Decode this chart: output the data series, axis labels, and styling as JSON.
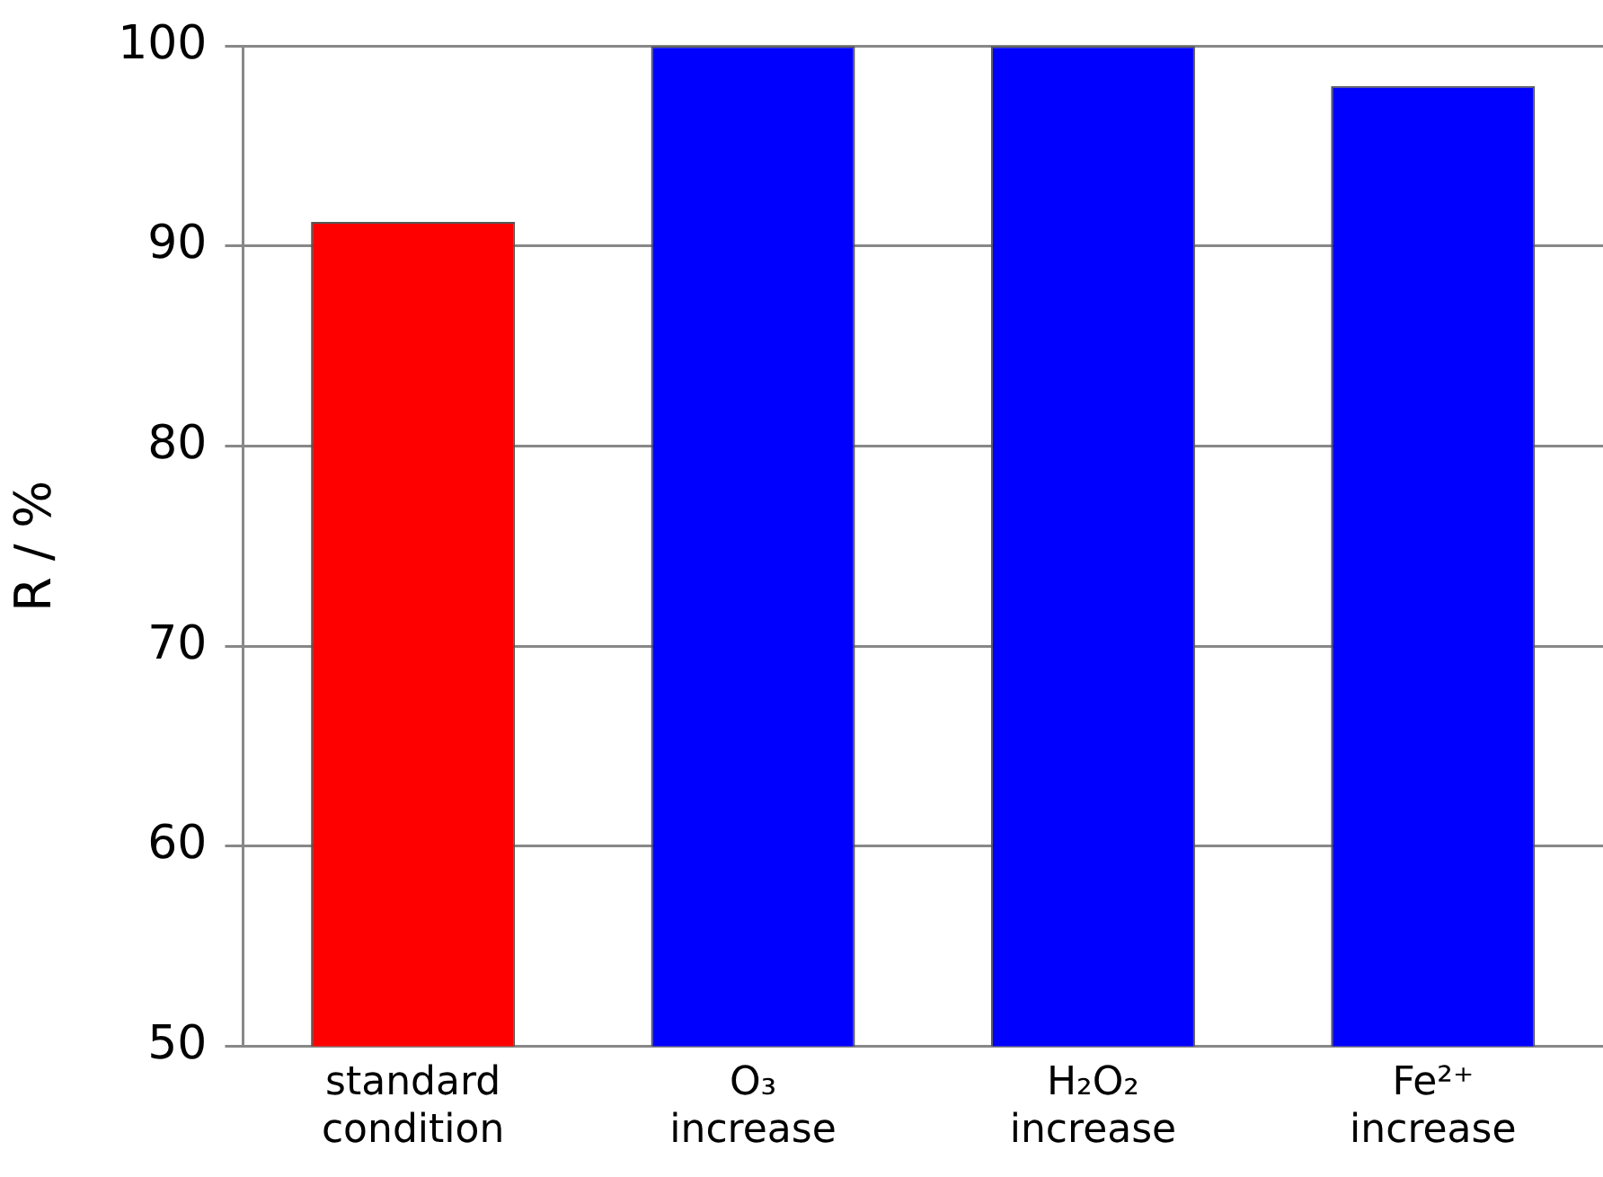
{
  "chart_data": {
    "type": "bar",
    "ylabel": "R / %",
    "categories": [
      "standard condition",
      "O₃ increase",
      "H₂O₂ increase",
      "Fe²⁺ increase"
    ],
    "values": [
      91.2,
      100,
      100,
      98
    ],
    "colors": [
      "#ff0000",
      "#0000ff",
      "#0000ff",
      "#0000ff"
    ],
    "ylim": [
      50,
      100
    ],
    "yticks": [
      50,
      60,
      70,
      80,
      90,
      100
    ],
    "grid": "y",
    "legend": false
  }
}
